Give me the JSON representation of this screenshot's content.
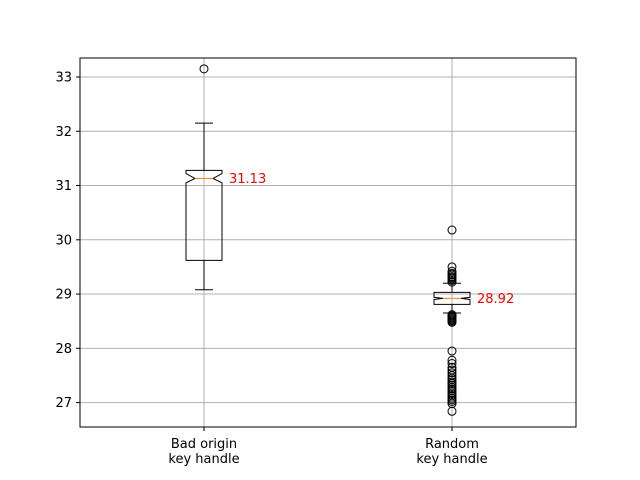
{
  "chart_data": {
    "type": "box",
    "ylim": [
      26.55,
      33.35
    ],
    "yticks": [
      27,
      28,
      29,
      30,
      31,
      32,
      33
    ],
    "grid": true,
    "notched": true,
    "categories": [
      [
        "Bad origin",
        "key handle"
      ],
      [
        "Random",
        "key handle"
      ]
    ],
    "boxes": [
      {
        "whisker_low": 29.08,
        "q1": 29.62,
        "median": 31.13,
        "q3": 31.28,
        "whisker_high": 32.15,
        "notch_low": 31.05,
        "notch_high": 31.22,
        "median_label": "31.13",
        "outliers": [
          33.15
        ]
      },
      {
        "whisker_low": 28.65,
        "q1": 28.81,
        "median": 28.92,
        "q3": 29.03,
        "whisker_high": 29.2,
        "notch_low": 28.9,
        "notch_high": 28.94,
        "median_label": "28.92",
        "outliers": [
          30.18,
          29.5,
          29.42,
          29.38,
          29.35,
          29.32,
          29.3,
          29.28,
          29.25,
          29.22,
          28.62,
          28.6,
          28.58,
          28.56,
          28.54,
          28.52,
          28.5,
          28.48,
          27.95,
          27.78,
          27.72,
          27.65,
          27.6,
          27.55,
          27.5,
          27.45,
          27.42,
          27.38,
          27.35,
          27.32,
          27.28,
          27.25,
          27.22,
          27.18,
          27.15,
          27.12,
          27.08,
          27.05,
          27.02,
          26.98,
          26.84
        ]
      }
    ],
    "colors": {
      "box": "#000000",
      "median": "#ff7f0e",
      "label": "#ff0000",
      "grid": "#b0b0b0"
    }
  }
}
